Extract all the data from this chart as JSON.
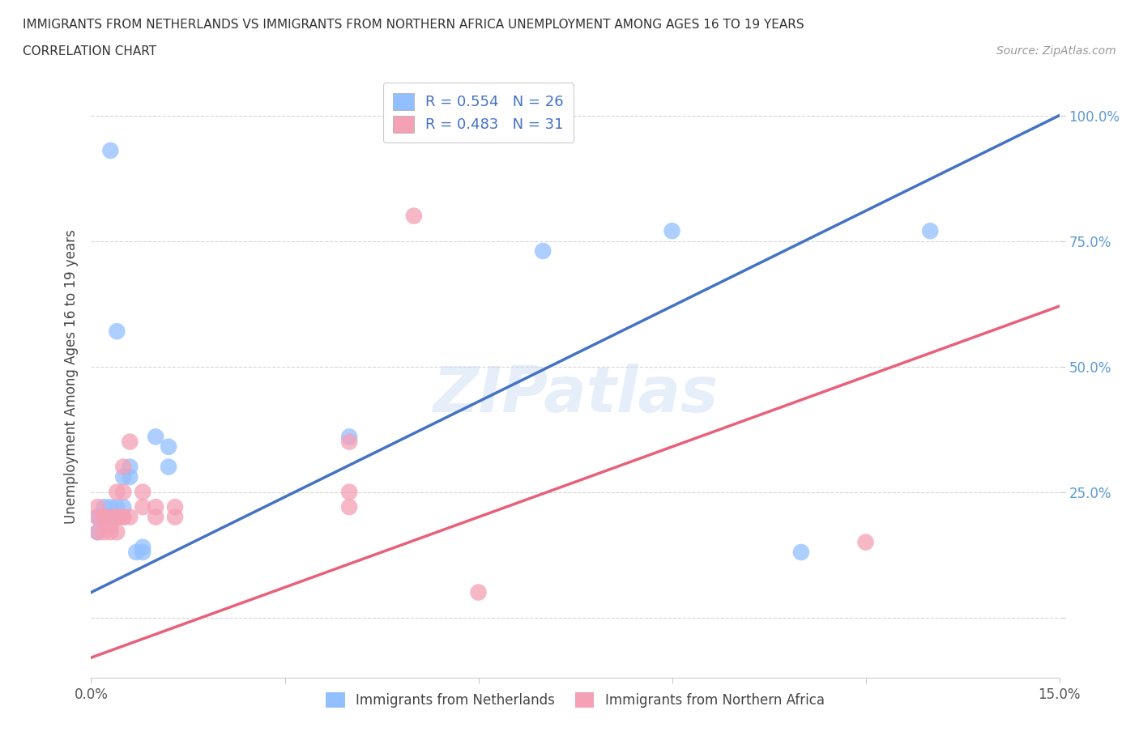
{
  "title_line1": "IMMIGRANTS FROM NETHERLANDS VS IMMIGRANTS FROM NORTHERN AFRICA UNEMPLOYMENT AMONG AGES 16 TO 19 YEARS",
  "title_line2": "CORRELATION CHART",
  "source": "Source: ZipAtlas.com",
  "ylabel": "Unemployment Among Ages 16 to 19 years",
  "watermark": "ZIPatlas",
  "xlim": [
    0.0,
    0.15
  ],
  "ylim": [
    -0.12,
    1.08
  ],
  "netherlands_color": "#92BFFF",
  "northern_africa_color": "#F4A0B5",
  "netherlands_line_color": "#4472C4",
  "northern_africa_line_color": "#E8607A",
  "netherlands_scatter": [
    [
      0.001,
      0.17
    ],
    [
      0.001,
      0.2
    ],
    [
      0.002,
      0.2
    ],
    [
      0.002,
      0.22
    ],
    [
      0.003,
      0.2
    ],
    [
      0.003,
      0.22
    ],
    [
      0.003,
      0.2
    ],
    [
      0.003,
      0.93
    ],
    [
      0.004,
      0.22
    ],
    [
      0.004,
      0.2
    ],
    [
      0.004,
      0.57
    ],
    [
      0.005,
      0.22
    ],
    [
      0.005,
      0.28
    ],
    [
      0.006,
      0.28
    ],
    [
      0.006,
      0.3
    ],
    [
      0.007,
      0.13
    ],
    [
      0.008,
      0.13
    ],
    [
      0.008,
      0.14
    ],
    [
      0.01,
      0.36
    ],
    [
      0.012,
      0.3
    ],
    [
      0.012,
      0.34
    ],
    [
      0.04,
      0.36
    ],
    [
      0.07,
      0.73
    ],
    [
      0.09,
      0.77
    ],
    [
      0.11,
      0.13
    ],
    [
      0.13,
      0.77
    ]
  ],
  "northern_africa_scatter": [
    [
      0.001,
      0.17
    ],
    [
      0.001,
      0.2
    ],
    [
      0.001,
      0.22
    ],
    [
      0.002,
      0.17
    ],
    [
      0.002,
      0.2
    ],
    [
      0.002,
      0.2
    ],
    [
      0.003,
      0.17
    ],
    [
      0.003,
      0.18
    ],
    [
      0.003,
      0.2
    ],
    [
      0.004,
      0.17
    ],
    [
      0.004,
      0.2
    ],
    [
      0.004,
      0.2
    ],
    [
      0.004,
      0.25
    ],
    [
      0.005,
      0.2
    ],
    [
      0.005,
      0.2
    ],
    [
      0.005,
      0.25
    ],
    [
      0.005,
      0.3
    ],
    [
      0.006,
      0.2
    ],
    [
      0.006,
      0.35
    ],
    [
      0.008,
      0.22
    ],
    [
      0.008,
      0.25
    ],
    [
      0.01,
      0.2
    ],
    [
      0.01,
      0.22
    ],
    [
      0.013,
      0.2
    ],
    [
      0.013,
      0.22
    ],
    [
      0.04,
      0.22
    ],
    [
      0.04,
      0.25
    ],
    [
      0.04,
      0.35
    ],
    [
      0.05,
      0.8
    ],
    [
      0.06,
      0.05
    ],
    [
      0.12,
      0.15
    ]
  ],
  "legend_labels": [
    "Immigrants from Netherlands",
    "Immigrants from Northern Africa"
  ],
  "legend_R_labels": [
    "R = 0.554   N = 26",
    "R = 0.483   N = 31"
  ],
  "background_color": "#ffffff",
  "grid_color": "#cccccc",
  "nl_line_x0": 0.0,
  "nl_line_y0": 0.05,
  "nl_line_x1": 0.15,
  "nl_line_y1": 1.0,
  "na_line_x0": 0.0,
  "na_line_y0": -0.08,
  "na_line_x1": 0.15,
  "na_line_y1": 0.62
}
